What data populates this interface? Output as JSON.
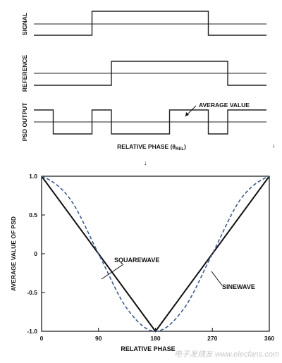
{
  "colors": {
    "trace": "#222222",
    "baseline": "#222222",
    "square": "#111111",
    "sine": "#3a5a8f",
    "watermark": "#c8c8c8"
  },
  "waveforms": {
    "rows": [
      {
        "key": "signal",
        "label": "SIGNAL",
        "transitions": [
          90,
          270
        ]
      },
      {
        "key": "reference",
        "label": "REFERENCE",
        "transitions": [
          120,
          300
        ]
      },
      {
        "key": "psd",
        "label": "PSD OUTPUT",
        "transitions": [
          30,
          90,
          120,
          210,
          270,
          300
        ]
      }
    ],
    "annotation": "AVERAGE VALUE",
    "xlabel_main": "RELATIVE PHASE (θ",
    "xlabel_sub": "REL",
    "xlabel_end": ")",
    "stray_marks": [
      "↓",
      "↓"
    ]
  },
  "chart_data": {
    "type": "line",
    "xlabel": "RELATIVE PHASE",
    "ylabel": "AVERAGE VALUE OF PSD",
    "xlim": [
      0,
      360
    ],
    "ylim": [
      -1.0,
      1.0
    ],
    "x_ticks": [
      "0",
      "90",
      "180",
      "270",
      "360"
    ],
    "y_ticks": [
      "1.0",
      "0.5",
      "0",
      "-0.5",
      "-1.0"
    ],
    "grid": false,
    "series": [
      {
        "name": "SQUAREWAVE",
        "style": "solid",
        "x": [
          0,
          90,
          180,
          270,
          360
        ],
        "y": [
          1.0,
          0.0,
          -1.0,
          0.0,
          1.0
        ]
      },
      {
        "name": "SINEWAVE",
        "style": "dashed",
        "x": [
          0,
          45,
          90,
          135,
          180,
          225,
          270,
          315,
          360
        ],
        "y": [
          1.0,
          0.707,
          0.0,
          -0.707,
          -1.0,
          -0.707,
          0.0,
          0.707,
          1.0
        ]
      }
    ]
  },
  "watermark": "电子发烧友 www.elecfans.com"
}
